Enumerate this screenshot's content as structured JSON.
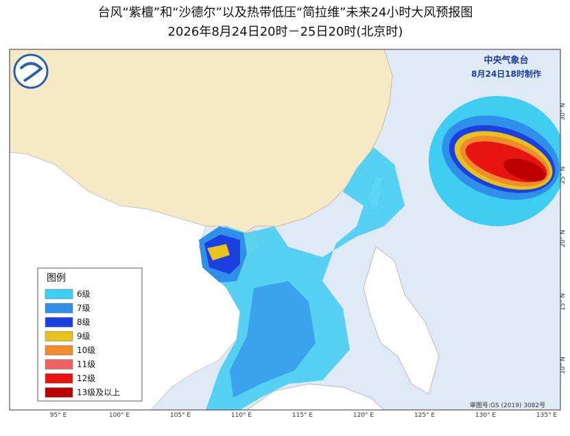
{
  "header": {
    "title": "台风“紫檀”和“沙德尔”以及热带低压“简拉维”未来24小时大风预报图",
    "subtitle": "2026年8月24日20时－25日20时(北京时)"
  },
  "agency": {
    "name": "中央气象台",
    "issued": "8月24日18时制作"
  },
  "legend": {
    "title": "图例",
    "items": [
      {
        "label": "6级",
        "color": "#3fcdf2"
      },
      {
        "label": "7级",
        "color": "#2f8fe9"
      },
      {
        "label": "8级",
        "color": "#1c3fe0"
      },
      {
        "label": "9级",
        "color": "#e8c21c"
      },
      {
        "label": "10级",
        "color": "#f08c2e"
      },
      {
        "label": "11级",
        "color": "#f06262"
      },
      {
        "label": "12级",
        "color": "#e8140f"
      },
      {
        "label": "13级及以上",
        "color": "#bb0000"
      }
    ]
  },
  "axes": {
    "longitude": [
      "95° E",
      "100° E",
      "105° E",
      "110° E",
      "115° E",
      "120° E",
      "125° E",
      "130° E",
      "135° E"
    ],
    "latitude": [
      "30° N",
      "25° N",
      "20° N",
      "15° N",
      "10° N"
    ]
  },
  "footer": {
    "approval": "审图号:GS (2019) 3082号"
  }
}
